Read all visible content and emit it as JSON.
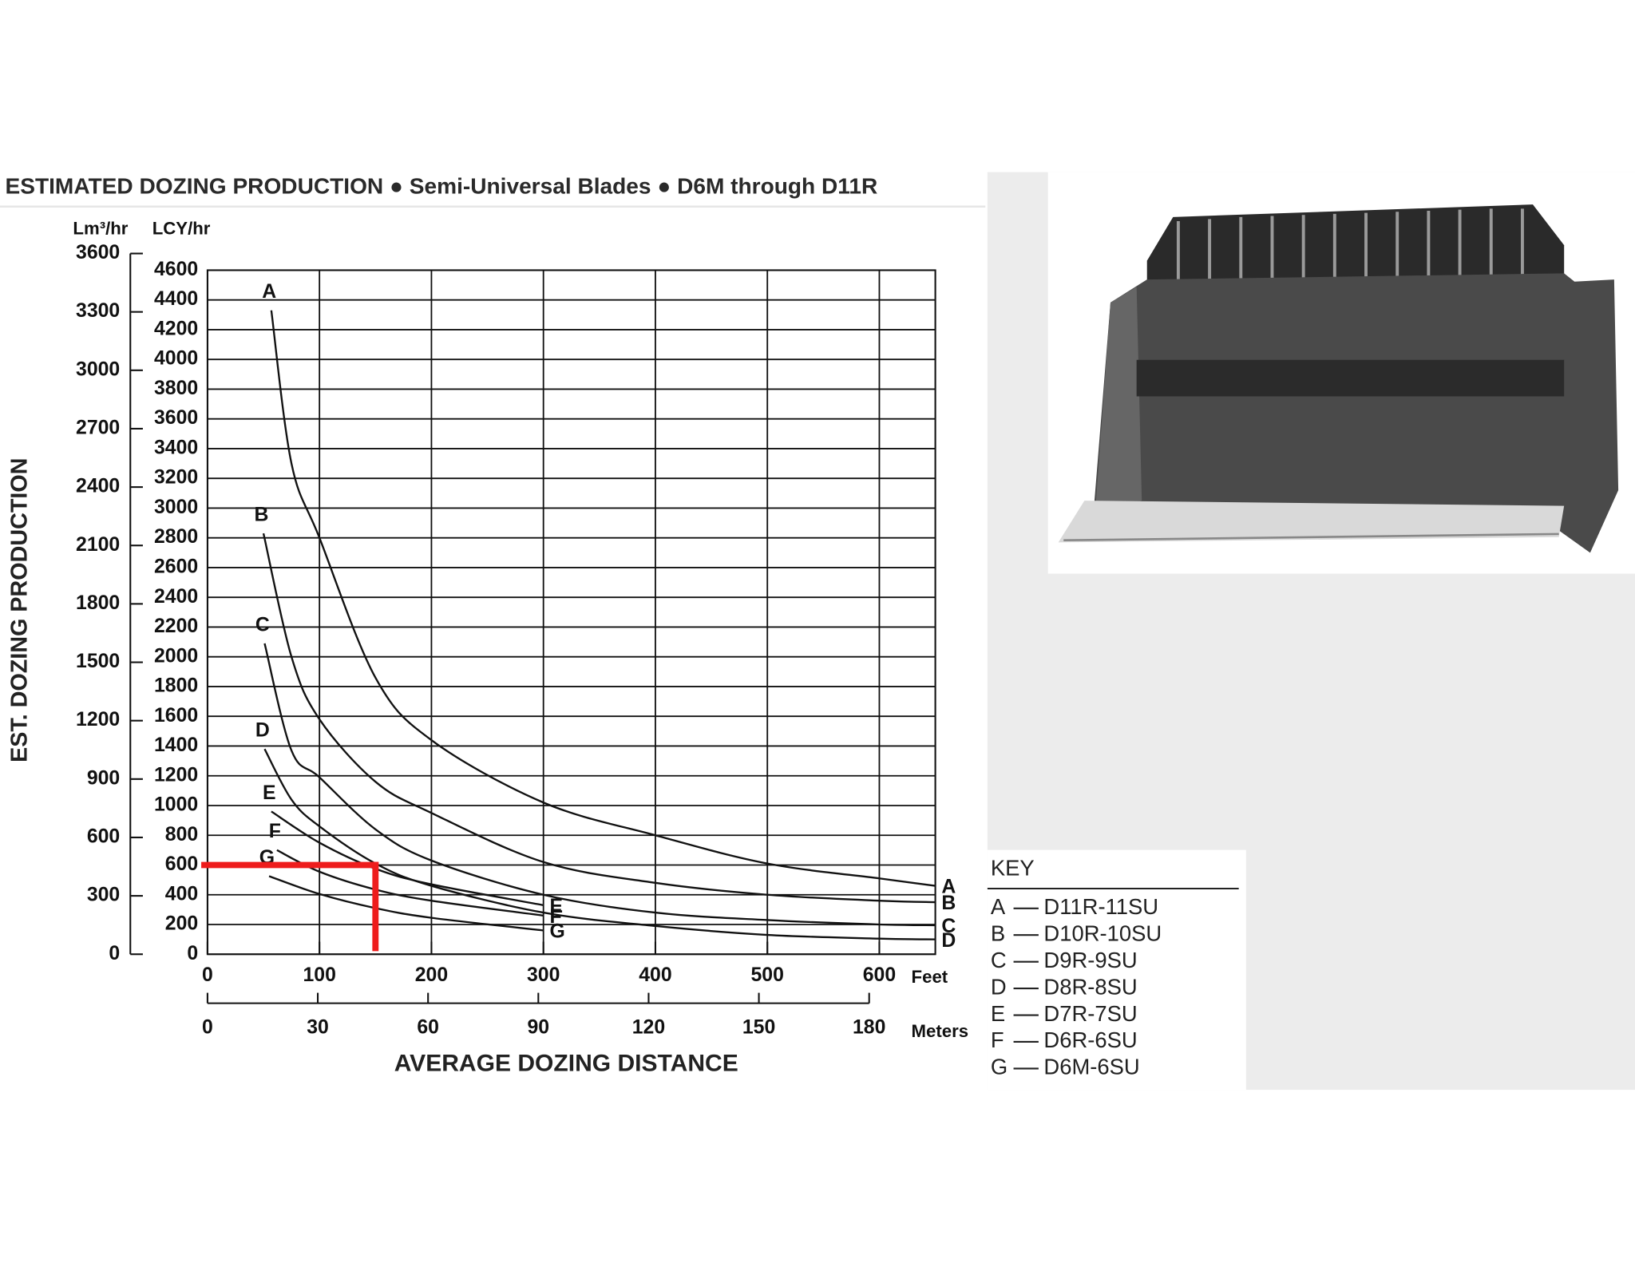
{
  "chart_data": {
    "type": "line",
    "title": "ESTIMATED DOZING PRODUCTION ● Semi-Universal Blades ● D6M through D11R",
    "ylabel": "EST. DOZING PRODUCTION",
    "xlabel": "AVERAGE DOZING DISTANCE",
    "yunit": "LCY/hr",
    "y2unit": "Lm³/hr",
    "xunit": "Feet",
    "x2unit": "Meters",
    "xlim": [
      0,
      650
    ],
    "xticks": [
      0,
      100,
      200,
      300,
      400,
      500,
      600
    ],
    "x2lim": [
      0,
      198
    ],
    "x2ticks": [
      0,
      30,
      60,
      90,
      120,
      150,
      180
    ],
    "ylim": [
      0,
      4600
    ],
    "yticks": [
      0,
      200,
      400,
      600,
      800,
      1000,
      1200,
      1400,
      1600,
      1800,
      2000,
      2200,
      2400,
      2600,
      2800,
      3000,
      3200,
      3400,
      3600,
      3800,
      4000,
      4200,
      4400,
      4600
    ],
    "y2lim": [
      0,
      3600
    ],
    "y2ticks": [
      0,
      300,
      600,
      900,
      1200,
      1500,
      1800,
      2100,
      2400,
      2700,
      3000,
      3300,
      3600
    ],
    "grid": true,
    "key_title": "KEY",
    "series": [
      {
        "name": "A",
        "model": "D11R-11SU",
        "color": "#111111",
        "x": [
          57,
          75,
          100,
          150,
          200,
          300,
          400,
          500,
          600,
          650
        ],
        "values": [
          4330,
          3300,
          2800,
          1860,
          1440,
          1020,
          800,
          610,
          510,
          460
        ]
      },
      {
        "name": "B",
        "model": "D10R-10SU",
        "color": "#111111",
        "x": [
          50,
          75,
          100,
          150,
          200,
          300,
          400,
          500,
          600,
          650
        ],
        "values": [
          2830,
          2000,
          1580,
          1160,
          950,
          620,
          480,
          400,
          360,
          350
        ]
      },
      {
        "name": "C",
        "model": "D9R-9SU",
        "color": "#111111",
        "x": [
          51,
          75,
          100,
          150,
          200,
          300,
          400,
          500,
          600,
          650
        ],
        "values": [
          2090,
          1370,
          1190,
          840,
          630,
          400,
          280,
          230,
          200,
          195
        ]
      },
      {
        "name": "D",
        "model": "D8R-8SU",
        "color": "#111111",
        "x": [
          51,
          75,
          100,
          150,
          200,
          300,
          400,
          500,
          600,
          650
        ],
        "values": [
          1380,
          1040,
          860,
          610,
          460,
          280,
          190,
          130,
          105,
          100
        ]
      },
      {
        "name": "E",
        "model": "D7R-7SU",
        "color": "#111111",
        "x": [
          57,
          100,
          150,
          200,
          300
        ],
        "values": [
          960,
          750,
          575,
          470,
          330
        ]
      },
      {
        "name": "F",
        "model": "D6R-6SU",
        "color": "#111111",
        "x": [
          62,
          100,
          150,
          200,
          300
        ],
        "values": [
          700,
          555,
          435,
          360,
          260
        ]
      },
      {
        "name": "G",
        "model": "D6M-6SU",
        "color": "#111111",
        "x": [
          55,
          100,
          150,
          200,
          300
        ],
        "values": [
          525,
          405,
          310,
          245,
          160
        ]
      }
    ],
    "annotation": {
      "x": 150,
      "y": 600,
      "color": "#ee1c1c"
    }
  }
}
